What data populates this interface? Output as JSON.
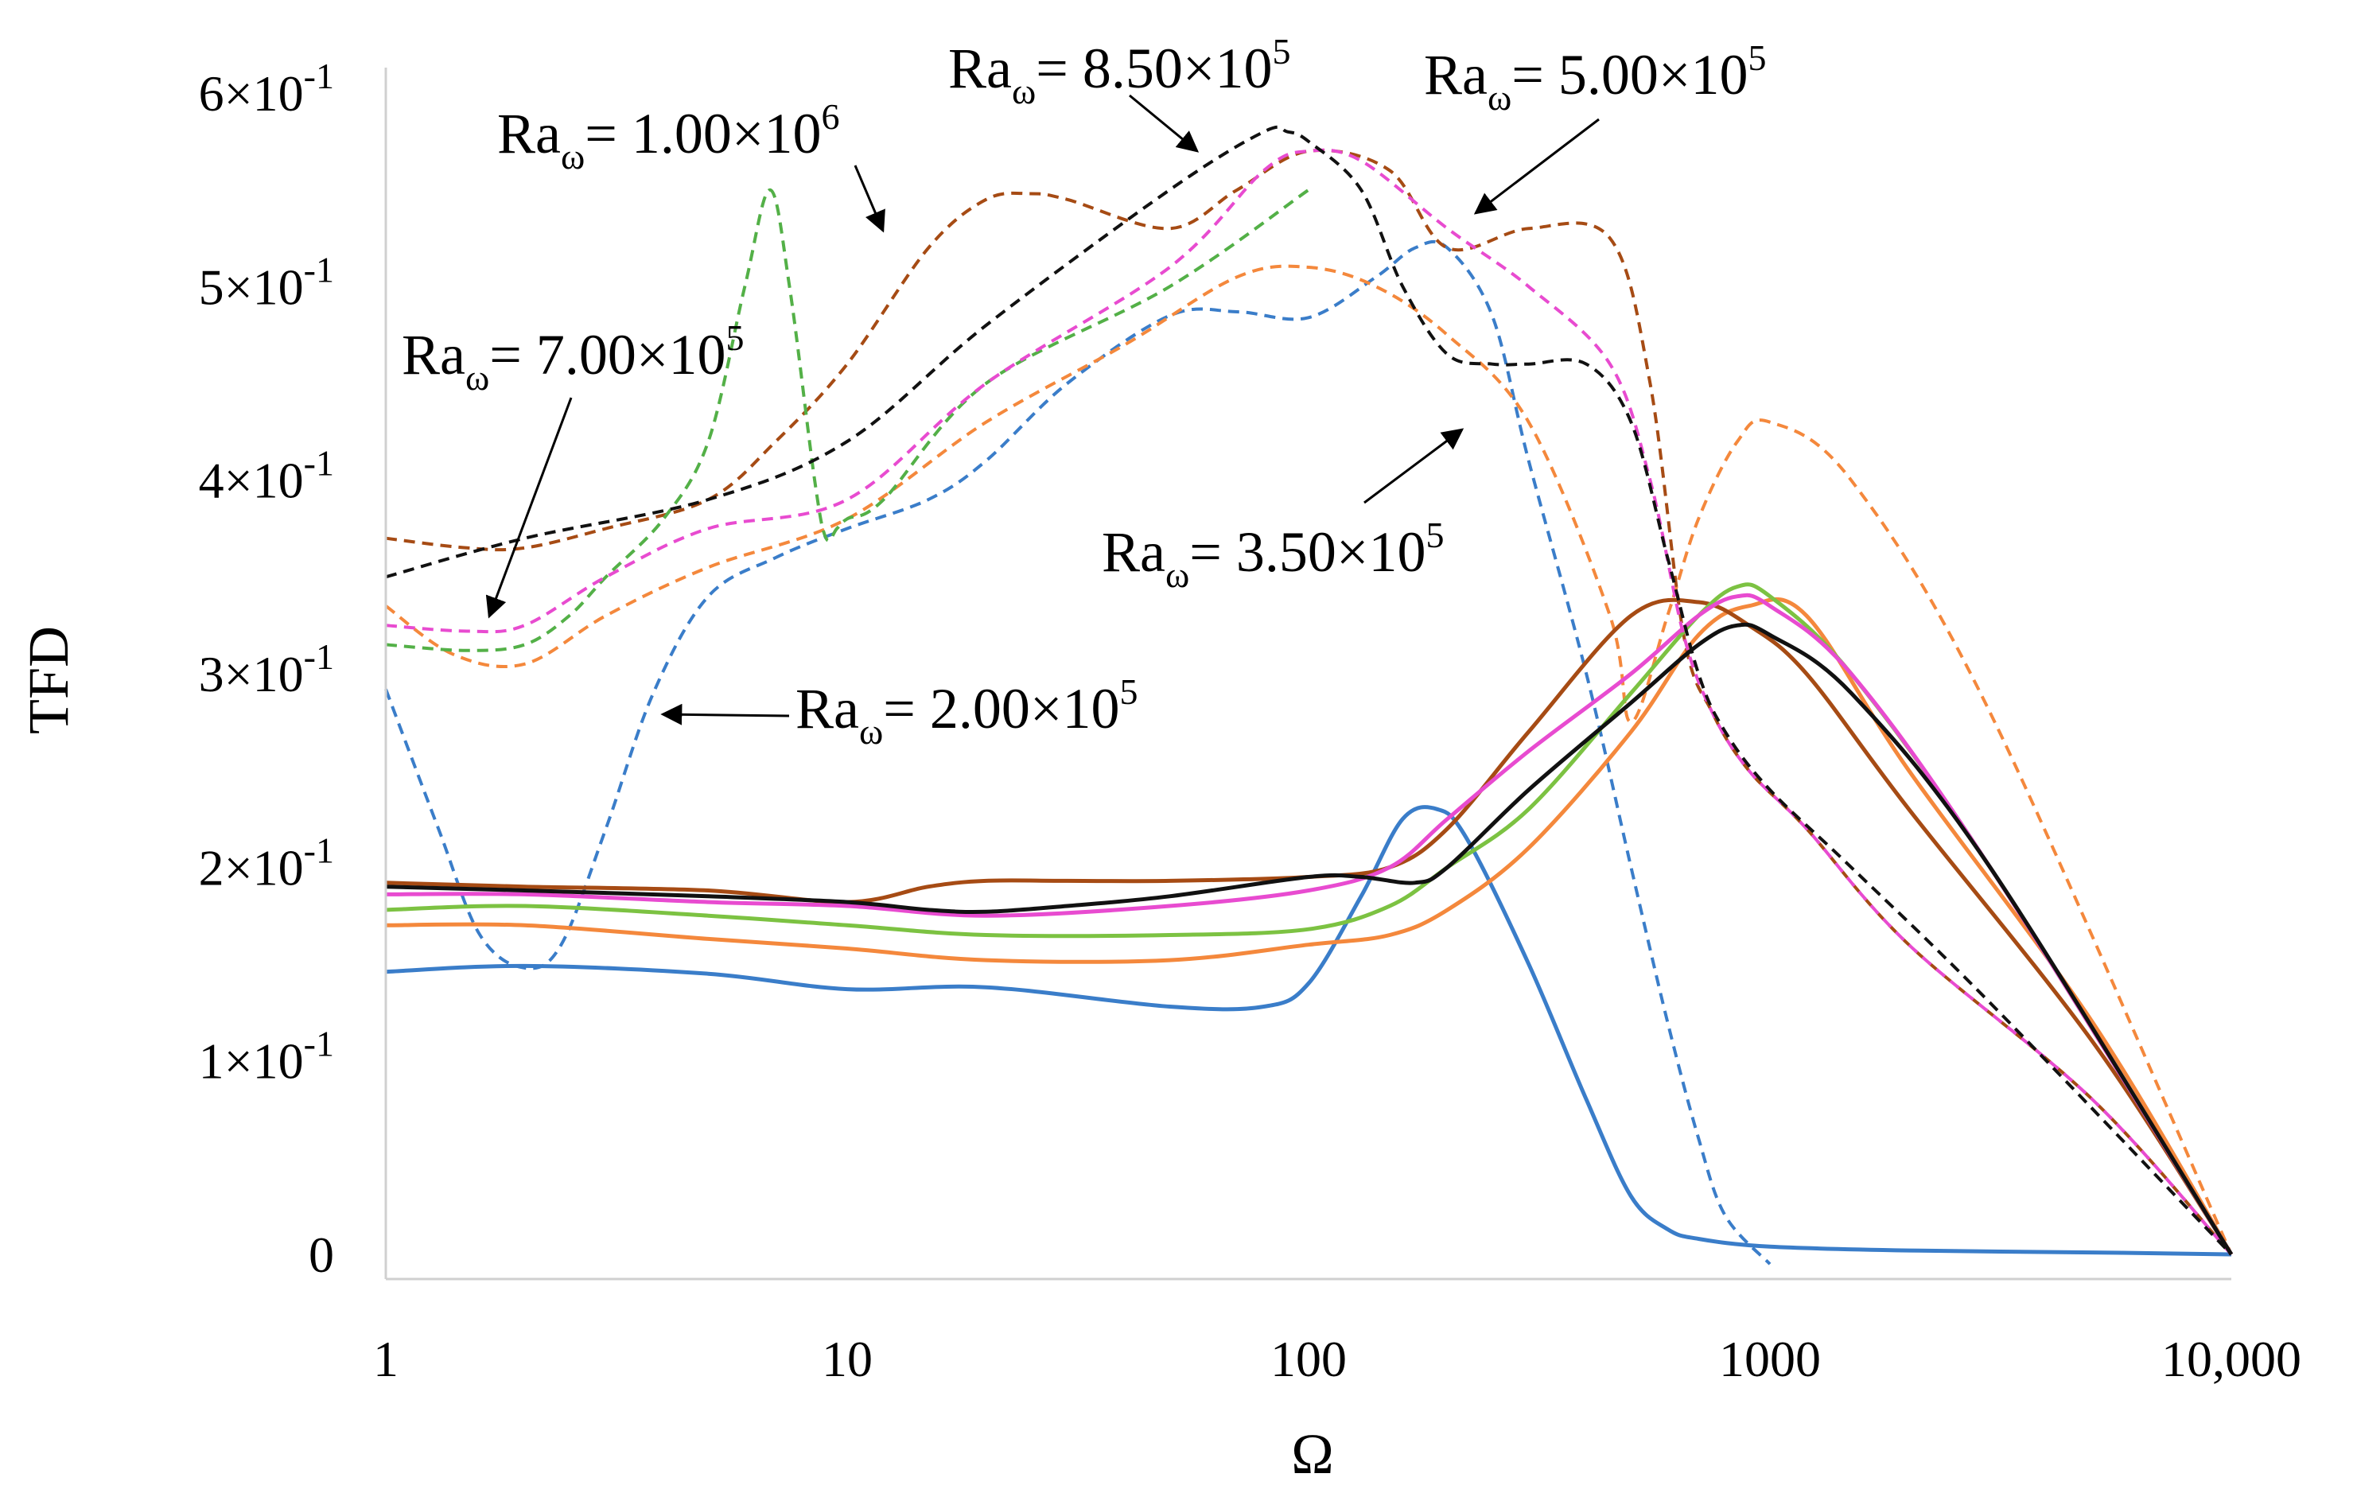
{
  "chart_data": {
    "type": "line",
    "title": "",
    "xlabel": "Ω",
    "ylabel": "TFD",
    "xscale": "log",
    "xlim": [
      1,
      10000
    ],
    "ylim": [
      -0.015,
      0.6
    ],
    "grid": false,
    "x_ticks": [
      {
        "value": 1,
        "label": "1"
      },
      {
        "value": 10,
        "label": "10"
      },
      {
        "value": 100,
        "label": "100"
      },
      {
        "value": 1000,
        "label": "1000"
      },
      {
        "value": 10000,
        "label": "10,000"
      }
    ],
    "y_ticks": [
      {
        "value": 0.0,
        "label": "0",
        "mantissa": "0",
        "exp": ""
      },
      {
        "value": 0.1,
        "label": "1×10-1",
        "mantissa": "1×10",
        "exp": "-1"
      },
      {
        "value": 0.2,
        "label": "2×10-1",
        "mantissa": "2×10",
        "exp": "-1"
      },
      {
        "value": 0.3,
        "label": "3×10-1",
        "mantissa": "3×10",
        "exp": "-1"
      },
      {
        "value": 0.4,
        "label": "4×10-1",
        "mantissa": "4×10",
        "exp": "-1"
      },
      {
        "value": 0.5,
        "label": "5×10-1",
        "mantissa": "5×10",
        "exp": "-1"
      },
      {
        "value": 0.6,
        "label": "6×10-1",
        "mantissa": "6×10",
        "exp": "-1"
      }
    ],
    "series": [
      {
        "name": "Ra_ω = 2.00×10^5 (dashed)",
        "color": "#3a7dc9",
        "dash": true,
        "x": [
          1,
          1.3,
          1.6,
          2,
          2.4,
          3,
          3.8,
          5,
          7,
          10,
          15,
          20,
          30,
          50,
          70,
          100,
          140,
          170,
          200,
          250,
          300,
          400,
          500,
          600,
          700,
          800,
          1000
        ],
        "y": [
          0.292,
          0.22,
          0.165,
          0.148,
          0.16,
          0.22,
          0.29,
          0.34,
          0.36,
          0.375,
          0.39,
          0.41,
          0.45,
          0.485,
          0.487,
          0.484,
          0.505,
          0.52,
          0.52,
          0.485,
          0.41,
          0.3,
          0.2,
          0.12,
          0.06,
          0.02,
          -0.005
        ]
      },
      {
        "name": "Ra_ω = 2.00×10^5 (solid)",
        "color": "#3a7dc9",
        "dash": false,
        "x": [
          1,
          2,
          5,
          10,
          20,
          50,
          80,
          100,
          130,
          160,
          190,
          220,
          300,
          400,
          500,
          600,
          700,
          1000,
          2000,
          5000,
          10000
        ],
        "y": [
          0.146,
          0.149,
          0.145,
          0.137,
          0.138,
          0.128,
          0.128,
          0.14,
          0.185,
          0.225,
          0.23,
          0.215,
          0.15,
          0.08,
          0.03,
          0.013,
          0.008,
          0.004,
          0.002,
          0.001,
          0.0
        ]
      },
      {
        "name": "Ra_ω = 3.50×10^5 (dashed)",
        "color": "#f4883c",
        "dash": true,
        "x": [
          1,
          1.4,
          2,
          3,
          5,
          10,
          20,
          40,
          70,
          100,
          140,
          200,
          300,
          450,
          500,
          600,
          700,
          850,
          1000,
          1500,
          3000,
          10000
        ],
        "y": [
          0.335,
          0.31,
          0.305,
          0.33,
          0.355,
          0.38,
          0.43,
          0.47,
          0.505,
          0.51,
          0.5,
          0.475,
          0.43,
          0.33,
          0.275,
          0.33,
          0.38,
          0.42,
          0.43,
          0.4,
          0.28,
          0.0
        ]
      },
      {
        "name": "Ra_ω = 3.50×10^5 (solid)",
        "color": "#f4883c",
        "dash": false,
        "x": [
          1,
          2,
          5,
          10,
          20,
          50,
          100,
          150,
          200,
          300,
          500,
          700,
          900,
          1200,
          2000,
          5000,
          10000
        ],
        "y": [
          0.17,
          0.17,
          0.163,
          0.158,
          0.152,
          0.152,
          0.16,
          0.165,
          0.178,
          0.21,
          0.27,
          0.32,
          0.335,
          0.33,
          0.25,
          0.12,
          0.0
        ]
      },
      {
        "name": "Ra_ω = 5.00×10^5 (dashed)",
        "color": "#a64b14",
        "dash": true,
        "x": [
          1,
          1.5,
          2,
          3,
          5,
          7,
          10,
          15,
          20,
          25,
          30,
          50,
          70,
          100,
          150,
          200,
          300,
          450,
          550,
          650,
          750,
          900,
          1200,
          2000,
          5000,
          10000
        ],
        "y": [
          0.37,
          0.365,
          0.365,
          0.375,
          0.39,
          0.42,
          0.46,
          0.52,
          0.545,
          0.548,
          0.545,
          0.53,
          0.55,
          0.57,
          0.56,
          0.52,
          0.53,
          0.525,
          0.45,
          0.32,
          0.28,
          0.25,
          0.22,
          0.16,
          0.08,
          0.0
        ]
      },
      {
        "name": "Ra_ω = 5.00×10^5 (solid)",
        "color": "#a64b14",
        "dash": false,
        "x": [
          1,
          2,
          5,
          10,
          15,
          20,
          30,
          50,
          100,
          150,
          200,
          300,
          500,
          700,
          900,
          1200,
          2000,
          5000,
          10000
        ],
        "y": [
          0.192,
          0.19,
          0.188,
          0.182,
          0.19,
          0.193,
          0.193,
          0.193,
          0.195,
          0.2,
          0.22,
          0.27,
          0.33,
          0.337,
          0.325,
          0.3,
          0.23,
          0.11,
          0.0
        ]
      },
      {
        "name": "Ra_ω = 7.00×10^5 (dashed)",
        "color": "#53b047",
        "dash": true,
        "x": [
          1,
          1.5,
          2,
          2.5,
          3,
          4,
          5,
          6,
          6.8,
          7.5,
          8.5,
          9,
          9.5,
          10,
          12,
          20,
          50,
          100
        ],
        "y": [
          0.315,
          0.312,
          0.315,
          0.33,
          0.35,
          0.38,
          0.42,
          0.5,
          0.55,
          0.5,
          0.4,
          0.37,
          0.375,
          0.38,
          0.39,
          0.45,
          0.5,
          0.55
        ]
      },
      {
        "name": "Ra_ω = 7.00×10^5 (solid)",
        "color": "#7cc242",
        "dash": false,
        "x": [
          1,
          2,
          5,
          10,
          20,
          50,
          100,
          150,
          200,
          300,
          500,
          700,
          850,
          1000,
          1500,
          3000,
          10000
        ],
        "y": [
          0.178,
          0.18,
          0.175,
          0.17,
          0.165,
          0.165,
          0.168,
          0.18,
          0.2,
          0.23,
          0.29,
          0.33,
          0.345,
          0.34,
          0.3,
          0.2,
          0.0
        ]
      },
      {
        "name": "Ra_ω = 8.50×10^5 (dashed)",
        "color": "#e84bd0",
        "dash": true,
        "x": [
          1,
          1.5,
          2,
          3,
          5,
          10,
          20,
          50,
          80,
          100,
          130,
          200,
          300,
          450,
          550,
          650,
          750,
          900,
          1200,
          2000,
          5000,
          10000
        ],
        "y": [
          0.325,
          0.322,
          0.325,
          0.35,
          0.375,
          0.39,
          0.45,
          0.51,
          0.56,
          0.57,
          0.565,
          0.53,
          0.5,
          0.46,
          0.4,
          0.32,
          0.28,
          0.25,
          0.22,
          0.16,
          0.08,
          0.0
        ]
      },
      {
        "name": "Ra_ω = 8.50×10^5 (solid)",
        "color": "#e84bd0",
        "dash": false,
        "x": [
          1,
          2,
          5,
          10,
          20,
          50,
          100,
          150,
          200,
          300,
          500,
          700,
          850,
          1000,
          1500,
          3000,
          10000
        ],
        "y": [
          0.186,
          0.186,
          0.182,
          0.18,
          0.175,
          0.18,
          0.188,
          0.2,
          0.225,
          0.26,
          0.3,
          0.33,
          0.34,
          0.335,
          0.3,
          0.2,
          0.0
        ]
      },
      {
        "name": "Ra_ω = 1.00×10^6 (dashed)",
        "color": "#111111",
        "dash": true,
        "x": [
          1,
          2,
          5,
          10,
          20,
          50,
          80,
          90,
          100,
          130,
          160,
          200,
          250,
          300,
          400,
          500,
          600,
          700,
          800,
          1000,
          1500,
          3000,
          10000
        ],
        "y": [
          0.35,
          0.37,
          0.39,
          0.42,
          0.48,
          0.55,
          0.58,
          0.58,
          0.575,
          0.55,
          0.5,
          0.465,
          0.46,
          0.46,
          0.46,
          0.43,
          0.36,
          0.3,
          0.27,
          0.24,
          0.2,
          0.13,
          0.0
        ]
      },
      {
        "name": "Ra_ω = 1.00×10^6 (solid)",
        "color": "#111111",
        "dash": false,
        "x": [
          1,
          2,
          5,
          10,
          15,
          20,
          30,
          50,
          100,
          130,
          170,
          200,
          300,
          500,
          700,
          850,
          1000,
          1500,
          3000,
          10000
        ],
        "y": [
          0.19,
          0.188,
          0.185,
          0.182,
          0.178,
          0.177,
          0.18,
          0.185,
          0.195,
          0.195,
          0.192,
          0.2,
          0.24,
          0.285,
          0.315,
          0.325,
          0.32,
          0.29,
          0.2,
          0.0
        ]
      }
    ],
    "annotations": [
      {
        "id": "ra-1e6",
        "base": "Ra",
        "sub": "ω",
        "mid": "= 1.00×10",
        "sup": "6"
      },
      {
        "id": "ra-8p5e5",
        "base": "Ra",
        "sub": "ω",
        "mid": "= 8.50×10",
        "sup": "5"
      },
      {
        "id": "ra-5e5",
        "base": "Ra",
        "sub": "ω",
        "mid": "= 5.00×10",
        "sup": "5"
      },
      {
        "id": "ra-7e5",
        "base": "Ra",
        "sub": "ω",
        "mid": "= 7.00×10",
        "sup": "5"
      },
      {
        "id": "ra-3p5e5",
        "base": "Ra",
        "sub": "ω",
        "mid": "= 3.50×10",
        "sup": "5"
      },
      {
        "id": "ra-2e5",
        "base": "Ra",
        "sub": "ω",
        "mid": "= 2.00×10",
        "sup": "5"
      }
    ]
  }
}
